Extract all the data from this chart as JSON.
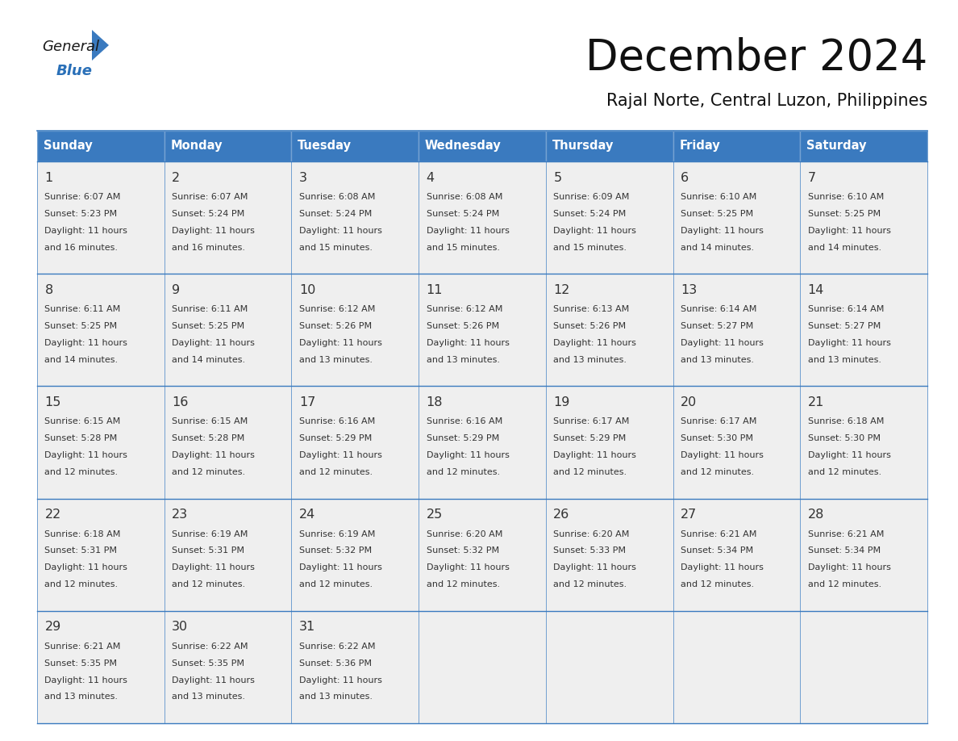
{
  "title": "December 2024",
  "subtitle": "Rajal Norte, Central Luzon, Philippines",
  "days_of_week": [
    "Sunday",
    "Monday",
    "Tuesday",
    "Wednesday",
    "Thursday",
    "Friday",
    "Saturday"
  ],
  "header_bg": "#3a7abf",
  "header_text": "#ffffff",
  "cell_bg": "#efefef",
  "border_color": "#3a7abf",
  "text_color": "#333333",
  "calendar": [
    [
      {
        "day": 1,
        "sunrise": "6:07 AM",
        "sunset": "5:23 PM",
        "daylight": "11 hours",
        "daylight2": "and 16 minutes."
      },
      {
        "day": 2,
        "sunrise": "6:07 AM",
        "sunset": "5:24 PM",
        "daylight": "11 hours",
        "daylight2": "and 16 minutes."
      },
      {
        "day": 3,
        "sunrise": "6:08 AM",
        "sunset": "5:24 PM",
        "daylight": "11 hours",
        "daylight2": "and 15 minutes."
      },
      {
        "day": 4,
        "sunrise": "6:08 AM",
        "sunset": "5:24 PM",
        "daylight": "11 hours",
        "daylight2": "and 15 minutes."
      },
      {
        "day": 5,
        "sunrise": "6:09 AM",
        "sunset": "5:24 PM",
        "daylight": "11 hours",
        "daylight2": "and 15 minutes."
      },
      {
        "day": 6,
        "sunrise": "6:10 AM",
        "sunset": "5:25 PM",
        "daylight": "11 hours",
        "daylight2": "and 14 minutes."
      },
      {
        "day": 7,
        "sunrise": "6:10 AM",
        "sunset": "5:25 PM",
        "daylight": "11 hours",
        "daylight2": "and 14 minutes."
      }
    ],
    [
      {
        "day": 8,
        "sunrise": "6:11 AM",
        "sunset": "5:25 PM",
        "daylight": "11 hours",
        "daylight2": "and 14 minutes."
      },
      {
        "day": 9,
        "sunrise": "6:11 AM",
        "sunset": "5:25 PM",
        "daylight": "11 hours",
        "daylight2": "and 14 minutes."
      },
      {
        "day": 10,
        "sunrise": "6:12 AM",
        "sunset": "5:26 PM",
        "daylight": "11 hours",
        "daylight2": "and 13 minutes."
      },
      {
        "day": 11,
        "sunrise": "6:12 AM",
        "sunset": "5:26 PM",
        "daylight": "11 hours",
        "daylight2": "and 13 minutes."
      },
      {
        "day": 12,
        "sunrise": "6:13 AM",
        "sunset": "5:26 PM",
        "daylight": "11 hours",
        "daylight2": "and 13 minutes."
      },
      {
        "day": 13,
        "sunrise": "6:14 AM",
        "sunset": "5:27 PM",
        "daylight": "11 hours",
        "daylight2": "and 13 minutes."
      },
      {
        "day": 14,
        "sunrise": "6:14 AM",
        "sunset": "5:27 PM",
        "daylight": "11 hours",
        "daylight2": "and 13 minutes."
      }
    ],
    [
      {
        "day": 15,
        "sunrise": "6:15 AM",
        "sunset": "5:28 PM",
        "daylight": "11 hours",
        "daylight2": "and 12 minutes."
      },
      {
        "day": 16,
        "sunrise": "6:15 AM",
        "sunset": "5:28 PM",
        "daylight": "11 hours",
        "daylight2": "and 12 minutes."
      },
      {
        "day": 17,
        "sunrise": "6:16 AM",
        "sunset": "5:29 PM",
        "daylight": "11 hours",
        "daylight2": "and 12 minutes."
      },
      {
        "day": 18,
        "sunrise": "6:16 AM",
        "sunset": "5:29 PM",
        "daylight": "11 hours",
        "daylight2": "and 12 minutes."
      },
      {
        "day": 19,
        "sunrise": "6:17 AM",
        "sunset": "5:29 PM",
        "daylight": "11 hours",
        "daylight2": "and 12 minutes."
      },
      {
        "day": 20,
        "sunrise": "6:17 AM",
        "sunset": "5:30 PM",
        "daylight": "11 hours",
        "daylight2": "and 12 minutes."
      },
      {
        "day": 21,
        "sunrise": "6:18 AM",
        "sunset": "5:30 PM",
        "daylight": "11 hours",
        "daylight2": "and 12 minutes."
      }
    ],
    [
      {
        "day": 22,
        "sunrise": "6:18 AM",
        "sunset": "5:31 PM",
        "daylight": "11 hours",
        "daylight2": "and 12 minutes."
      },
      {
        "day": 23,
        "sunrise": "6:19 AM",
        "sunset": "5:31 PM",
        "daylight": "11 hours",
        "daylight2": "and 12 minutes."
      },
      {
        "day": 24,
        "sunrise": "6:19 AM",
        "sunset": "5:32 PM",
        "daylight": "11 hours",
        "daylight2": "and 12 minutes."
      },
      {
        "day": 25,
        "sunrise": "6:20 AM",
        "sunset": "5:32 PM",
        "daylight": "11 hours",
        "daylight2": "and 12 minutes."
      },
      {
        "day": 26,
        "sunrise": "6:20 AM",
        "sunset": "5:33 PM",
        "daylight": "11 hours",
        "daylight2": "and 12 minutes."
      },
      {
        "day": 27,
        "sunrise": "6:21 AM",
        "sunset": "5:34 PM",
        "daylight": "11 hours",
        "daylight2": "and 12 minutes."
      },
      {
        "day": 28,
        "sunrise": "6:21 AM",
        "sunset": "5:34 PM",
        "daylight": "11 hours",
        "daylight2": "and 12 minutes."
      }
    ],
    [
      {
        "day": 29,
        "sunrise": "6:21 AM",
        "sunset": "5:35 PM",
        "daylight": "11 hours",
        "daylight2": "and 13 minutes."
      },
      {
        "day": 30,
        "sunrise": "6:22 AM",
        "sunset": "5:35 PM",
        "daylight": "11 hours",
        "daylight2": "and 13 minutes."
      },
      {
        "day": 31,
        "sunrise": "6:22 AM",
        "sunset": "5:36 PM",
        "daylight": "11 hours",
        "daylight2": "and 13 minutes."
      },
      null,
      null,
      null,
      null
    ]
  ],
  "logo_general_color": "#1a1a1a",
  "logo_blue_color": "#2a70b8",
  "logo_triangle_color": "#3a7abf"
}
